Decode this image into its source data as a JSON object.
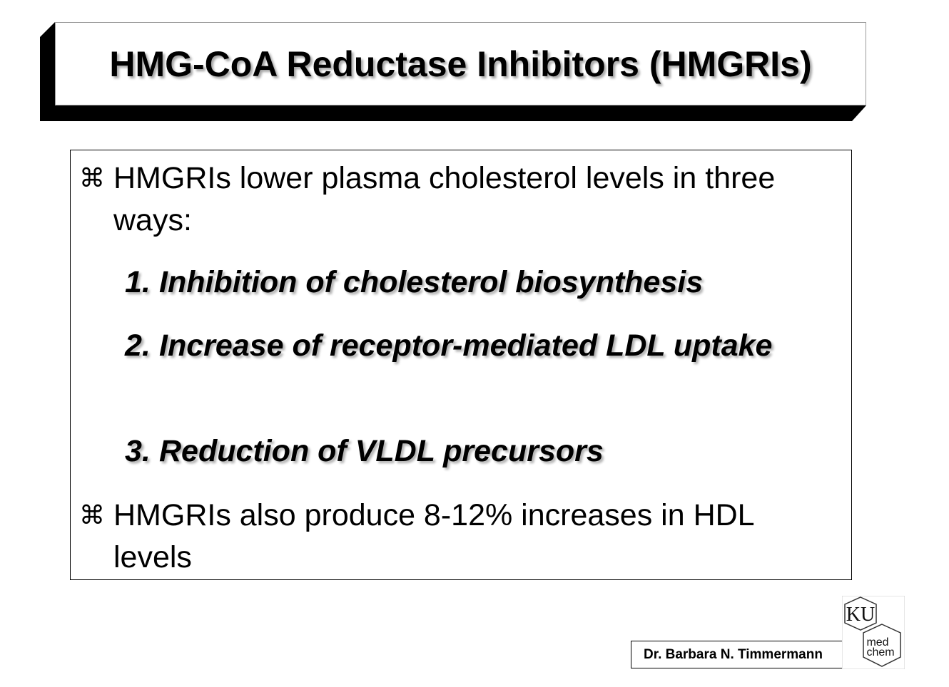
{
  "slide": {
    "title": "HMG-CoA Reductase Inhibitors (HMGRIs)",
    "bullets": [
      {
        "icon": "command-bullet-icon",
        "marker": "⌘",
        "text": "HMGRIs lower plasma cholesterol levels in three ways:"
      },
      {
        "icon": "command-bullet-icon",
        "marker": "⌘",
        "text": "HMGRIs also produce 8-12% increases in HDL levels"
      }
    ],
    "items": [
      {
        "number": "1.",
        "text": "Inhibition of cholesterol biosynthesis"
      },
      {
        "number": "2.",
        "text": "Increase of receptor-mediated LDL uptake"
      },
      {
        "number": "3.",
        "text": "Reduction of VLDL precursors"
      }
    ],
    "author": "Dr. Barbara N. Timmermann",
    "logo": {
      "top": "KU",
      "bottom_line1": "med",
      "bottom_line2": "chem"
    }
  }
}
